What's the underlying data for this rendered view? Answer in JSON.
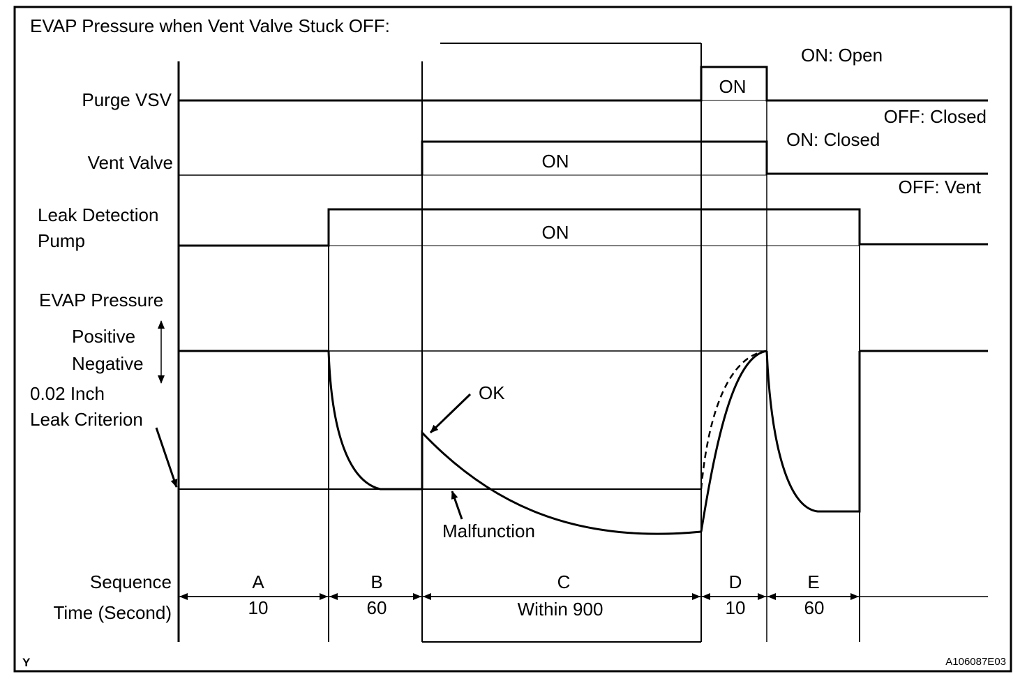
{
  "title": "EVAP Pressure when Vent Valve Stuck OFF:",
  "signals": {
    "purge_vsv": {
      "label": "Purge VSV",
      "on_text": "ON",
      "on_state": "ON: Open",
      "off_state": "OFF: Closed"
    },
    "vent_valve": {
      "label": "Vent Valve",
      "on_text": "ON",
      "on_state": "ON: Closed",
      "off_state": "OFF: Vent"
    },
    "leak_pump": {
      "label_line1": "Leak Detection",
      "label_line2": "Pump",
      "on_text": "ON"
    }
  },
  "pressure": {
    "label": "EVAP Pressure",
    "positive": "Positive",
    "negative": "Negative",
    "criterion_line1": "0.02 Inch",
    "criterion_line2": "Leak Criterion",
    "ok": "OK",
    "malfunction": "Malfunction"
  },
  "sequence": {
    "label": "Sequence",
    "time_label": "Time (Second)",
    "steps": [
      {
        "name": "A",
        "time": "10"
      },
      {
        "name": "B",
        "time": "60"
      },
      {
        "name": "C",
        "time": "Within 900"
      },
      {
        "name": "D",
        "time": "10"
      },
      {
        "name": "E",
        "time": "60"
      }
    ]
  },
  "footer": {
    "left": "Y",
    "right": "A106087E03"
  }
}
